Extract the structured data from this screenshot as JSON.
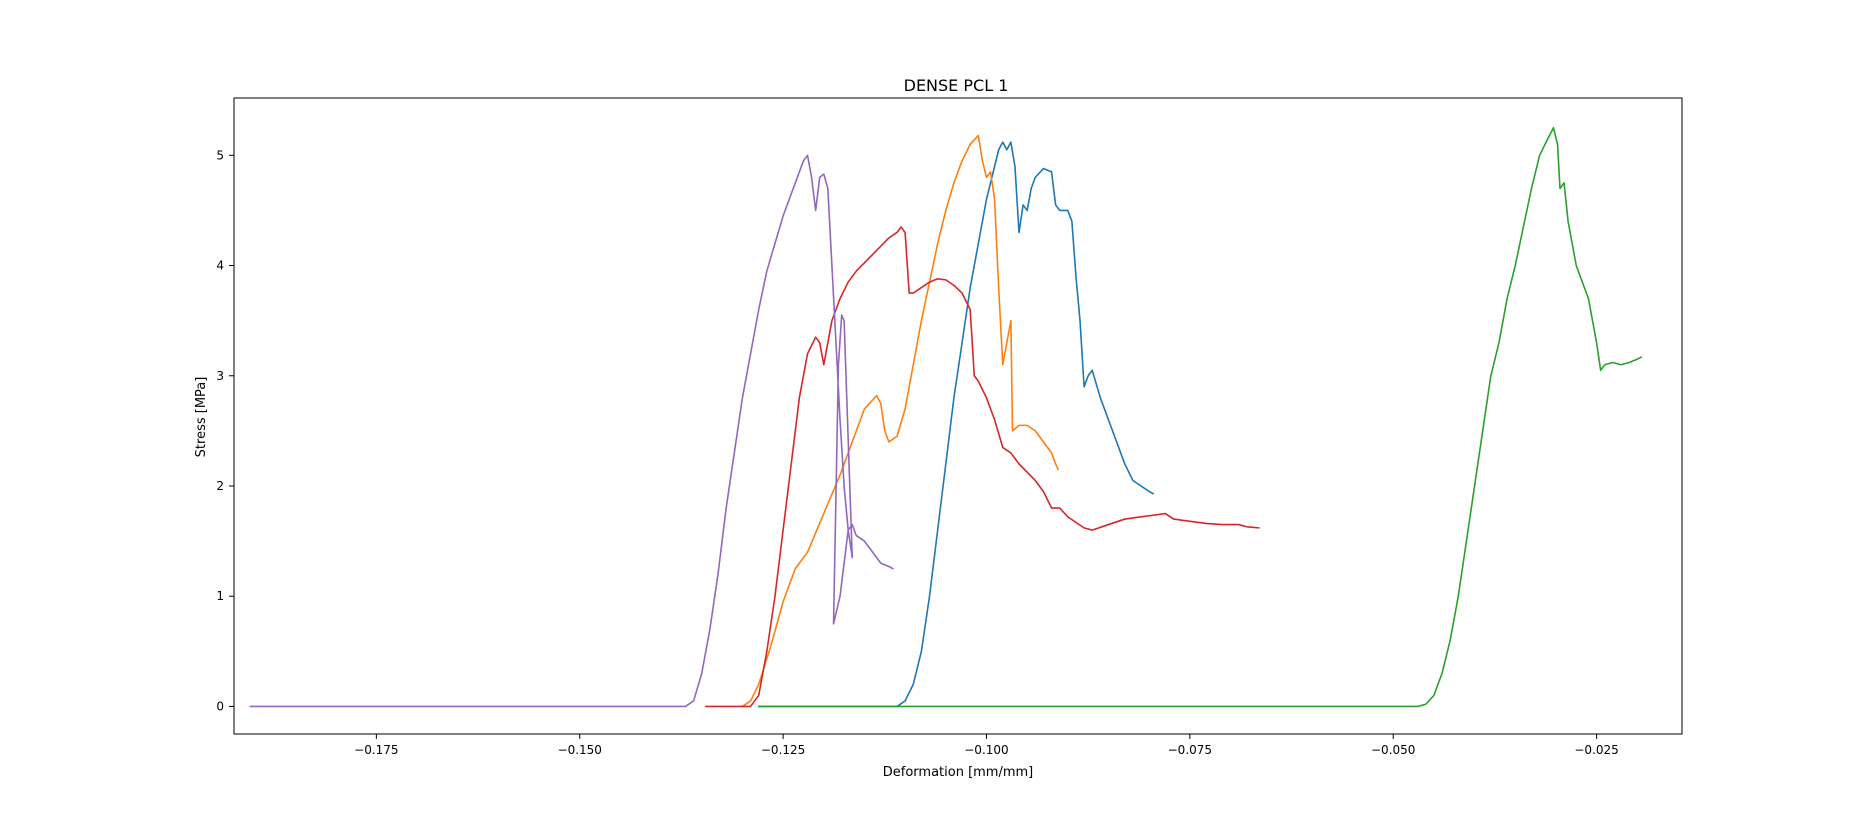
{
  "chart_data": {
    "type": "line",
    "title": "DENSE PCL 1",
    "xlabel": "Deformation [mm/mm]",
    "ylabel": "Stress [MPa]",
    "xlim": [
      -0.1925,
      -0.0145
    ],
    "ylim": [
      -0.25,
      5.52
    ],
    "x_ticks": [
      -0.175,
      -0.15,
      -0.125,
      -0.1,
      -0.075,
      -0.05,
      -0.025
    ],
    "x_tick_labels": [
      "−0.175",
      "−0.150",
      "−0.125",
      "−0.100",
      "−0.075",
      "−0.050",
      "−0.025"
    ],
    "y_ticks": [
      0,
      1,
      2,
      3,
      4,
      5
    ],
    "y_tick_labels": [
      "0",
      "1",
      "2",
      "3",
      "4",
      "5"
    ],
    "grid": false,
    "series": [
      {
        "color": "#1f77b4",
        "points": [
          [
            -0.128,
            0
          ],
          [
            -0.111,
            0
          ],
          [
            -0.11,
            0.05
          ],
          [
            -0.109,
            0.2
          ],
          [
            -0.108,
            0.5
          ],
          [
            -0.107,
            1.0
          ],
          [
            -0.106,
            1.6
          ],
          [
            -0.105,
            2.2
          ],
          [
            -0.104,
            2.8
          ],
          [
            -0.103,
            3.3
          ],
          [
            -0.102,
            3.8
          ],
          [
            -0.101,
            4.2
          ],
          [
            -0.1,
            4.6
          ],
          [
            -0.099,
            4.9
          ],
          [
            -0.0985,
            5.05
          ],
          [
            -0.098,
            5.12
          ],
          [
            -0.0975,
            5.05
          ],
          [
            -0.097,
            5.12
          ],
          [
            -0.0965,
            4.9
          ],
          [
            -0.096,
            4.3
          ],
          [
            -0.0955,
            4.55
          ],
          [
            -0.095,
            4.5
          ],
          [
            -0.0945,
            4.7
          ],
          [
            -0.094,
            4.8
          ],
          [
            -0.093,
            4.88
          ],
          [
            -0.092,
            4.85
          ],
          [
            -0.0915,
            4.55
          ],
          [
            -0.091,
            4.5
          ],
          [
            -0.09,
            4.5
          ],
          [
            -0.0895,
            4.4
          ],
          [
            -0.089,
            3.9
          ],
          [
            -0.0885,
            3.5
          ],
          [
            -0.088,
            2.9
          ],
          [
            -0.0875,
            3.0
          ],
          [
            -0.087,
            3.05
          ],
          [
            -0.086,
            2.8
          ],
          [
            -0.085,
            2.6
          ],
          [
            -0.084,
            2.4
          ],
          [
            -0.083,
            2.2
          ],
          [
            -0.082,
            2.05
          ],
          [
            -0.081,
            2.0
          ],
          [
            -0.08,
            1.95
          ],
          [
            -0.0795,
            1.93
          ]
        ]
      },
      {
        "color": "#ff7f0e",
        "points": [
          [
            -0.13,
            0
          ],
          [
            -0.129,
            0.05
          ],
          [
            -0.128,
            0.2
          ],
          [
            -0.1265,
            0.55
          ],
          [
            -0.125,
            0.95
          ],
          [
            -0.1235,
            1.25
          ],
          [
            -0.122,
            1.4
          ],
          [
            -0.12,
            1.75
          ],
          [
            -0.118,
            2.1
          ],
          [
            -0.1165,
            2.4
          ],
          [
            -0.115,
            2.7
          ],
          [
            -0.1135,
            2.82
          ],
          [
            -0.113,
            2.75
          ],
          [
            -0.1125,
            2.5
          ],
          [
            -0.112,
            2.4
          ],
          [
            -0.111,
            2.45
          ],
          [
            -0.11,
            2.7
          ],
          [
            -0.109,
            3.1
          ],
          [
            -0.108,
            3.5
          ],
          [
            -0.107,
            3.85
          ],
          [
            -0.106,
            4.2
          ],
          [
            -0.105,
            4.5
          ],
          [
            -0.104,
            4.75
          ],
          [
            -0.103,
            4.95
          ],
          [
            -0.102,
            5.1
          ],
          [
            -0.101,
            5.18
          ],
          [
            -0.1005,
            4.95
          ],
          [
            -0.1,
            4.8
          ],
          [
            -0.0995,
            4.85
          ],
          [
            -0.099,
            4.6
          ],
          [
            -0.0985,
            3.8
          ],
          [
            -0.098,
            3.1
          ],
          [
            -0.0975,
            3.3
          ],
          [
            -0.097,
            3.5
          ],
          [
            -0.0968,
            2.5
          ],
          [
            -0.096,
            2.55
          ],
          [
            -0.095,
            2.55
          ],
          [
            -0.094,
            2.5
          ],
          [
            -0.093,
            2.4
          ],
          [
            -0.092,
            2.3
          ],
          [
            -0.0915,
            2.2
          ],
          [
            -0.0912,
            2.15
          ]
        ]
      },
      {
        "color": "#2ca02c",
        "points": [
          [
            -0.128,
            0
          ],
          [
            -0.047,
            0
          ],
          [
            -0.046,
            0.02
          ],
          [
            -0.045,
            0.1
          ],
          [
            -0.044,
            0.3
          ],
          [
            -0.043,
            0.6
          ],
          [
            -0.042,
            1.0
          ],
          [
            -0.041,
            1.5
          ],
          [
            -0.04,
            2.0
          ],
          [
            -0.039,
            2.5
          ],
          [
            -0.038,
            3.0
          ],
          [
            -0.037,
            3.3
          ],
          [
            -0.036,
            3.7
          ],
          [
            -0.035,
            4.0
          ],
          [
            -0.034,
            4.35
          ],
          [
            -0.033,
            4.7
          ],
          [
            -0.032,
            5.0
          ],
          [
            -0.031,
            5.15
          ],
          [
            -0.0303,
            5.25
          ],
          [
            -0.0298,
            5.1
          ],
          [
            -0.0295,
            4.7
          ],
          [
            -0.029,
            4.75
          ],
          [
            -0.0285,
            4.4
          ],
          [
            -0.028,
            4.2
          ],
          [
            -0.0275,
            4.0
          ],
          [
            -0.027,
            3.9
          ],
          [
            -0.026,
            3.7
          ],
          [
            -0.0255,
            3.5
          ],
          [
            -0.025,
            3.3
          ],
          [
            -0.0245,
            3.05
          ],
          [
            -0.024,
            3.1
          ],
          [
            -0.023,
            3.12
          ],
          [
            -0.022,
            3.1
          ],
          [
            -0.021,
            3.12
          ],
          [
            -0.02,
            3.15
          ],
          [
            -0.0195,
            3.17
          ]
        ]
      },
      {
        "color": "#d62728",
        "points": [
          [
            -0.1345,
            0
          ],
          [
            -0.129,
            0
          ],
          [
            -0.128,
            0.1
          ],
          [
            -0.127,
            0.5
          ],
          [
            -0.126,
            1.0
          ],
          [
            -0.125,
            1.6
          ],
          [
            -0.124,
            2.2
          ],
          [
            -0.123,
            2.8
          ],
          [
            -0.122,
            3.2
          ],
          [
            -0.121,
            3.35
          ],
          [
            -0.1205,
            3.3
          ],
          [
            -0.12,
            3.1
          ],
          [
            -0.1195,
            3.3
          ],
          [
            -0.119,
            3.5
          ],
          [
            -0.118,
            3.7
          ],
          [
            -0.117,
            3.85
          ],
          [
            -0.116,
            3.95
          ],
          [
            -0.114,
            4.1
          ],
          [
            -0.112,
            4.25
          ],
          [
            -0.111,
            4.3
          ],
          [
            -0.1105,
            4.35
          ],
          [
            -0.11,
            4.3
          ],
          [
            -0.1095,
            3.75
          ],
          [
            -0.109,
            3.75
          ],
          [
            -0.108,
            3.8
          ],
          [
            -0.107,
            3.85
          ],
          [
            -0.106,
            3.88
          ],
          [
            -0.105,
            3.87
          ],
          [
            -0.104,
            3.82
          ],
          [
            -0.103,
            3.75
          ],
          [
            -0.102,
            3.6
          ],
          [
            -0.1015,
            3.0
          ],
          [
            -0.101,
            2.95
          ],
          [
            -0.1,
            2.8
          ],
          [
            -0.099,
            2.6
          ],
          [
            -0.098,
            2.35
          ],
          [
            -0.097,
            2.3
          ],
          [
            -0.096,
            2.2
          ],
          [
            -0.094,
            2.05
          ],
          [
            -0.093,
            1.95
          ],
          [
            -0.092,
            1.8
          ],
          [
            -0.091,
            1.8
          ],
          [
            -0.09,
            1.72
          ],
          [
            -0.088,
            1.62
          ],
          [
            -0.087,
            1.6
          ],
          [
            -0.085,
            1.65
          ],
          [
            -0.083,
            1.7
          ],
          [
            -0.08,
            1.73
          ],
          [
            -0.078,
            1.75
          ],
          [
            -0.077,
            1.7
          ],
          [
            -0.075,
            1.68
          ],
          [
            -0.073,
            1.66
          ],
          [
            -0.071,
            1.65
          ],
          [
            -0.069,
            1.65
          ],
          [
            -0.068,
            1.63
          ],
          [
            -0.0665,
            1.62
          ]
        ]
      },
      {
        "color": "#9467bd",
        "points": [
          [
            -0.1905,
            0
          ],
          [
            -0.137,
            0
          ],
          [
            -0.136,
            0.05
          ],
          [
            -0.135,
            0.3
          ],
          [
            -0.134,
            0.7
          ],
          [
            -0.133,
            1.2
          ],
          [
            -0.132,
            1.8
          ],
          [
            -0.131,
            2.3
          ],
          [
            -0.13,
            2.8
          ],
          [
            -0.129,
            3.2
          ],
          [
            -0.128,
            3.6
          ],
          [
            -0.127,
            3.95
          ],
          [
            -0.126,
            4.2
          ],
          [
            -0.125,
            4.45
          ],
          [
            -0.124,
            4.65
          ],
          [
            -0.1235,
            4.75
          ],
          [
            -0.123,
            4.85
          ],
          [
            -0.1225,
            4.95
          ],
          [
            -0.122,
            5.0
          ],
          [
            -0.1215,
            4.8
          ],
          [
            -0.121,
            4.5
          ],
          [
            -0.1205,
            4.8
          ],
          [
            -0.12,
            4.83
          ],
          [
            -0.1195,
            4.7
          ],
          [
            -0.119,
            4.0
          ],
          [
            -0.1185,
            3.3
          ],
          [
            -0.118,
            2.6
          ],
          [
            -0.1175,
            2.0
          ],
          [
            -0.117,
            1.6
          ],
          [
            -0.1165,
            1.35
          ],
          [
            -0.1175,
            3.5
          ],
          [
            -0.1178,
            3.55
          ],
          [
            -0.1182,
            3.1
          ],
          [
            -0.1188,
            0.75
          ],
          [
            -0.118,
            1.0
          ],
          [
            -0.1175,
            1.3
          ],
          [
            -0.117,
            1.6
          ],
          [
            -0.1165,
            1.65
          ],
          [
            -0.116,
            1.55
          ],
          [
            -0.115,
            1.5
          ],
          [
            -0.114,
            1.4
          ],
          [
            -0.113,
            1.3
          ],
          [
            -0.112,
            1.27
          ],
          [
            -0.1115,
            1.25
          ]
        ]
      }
    ]
  }
}
